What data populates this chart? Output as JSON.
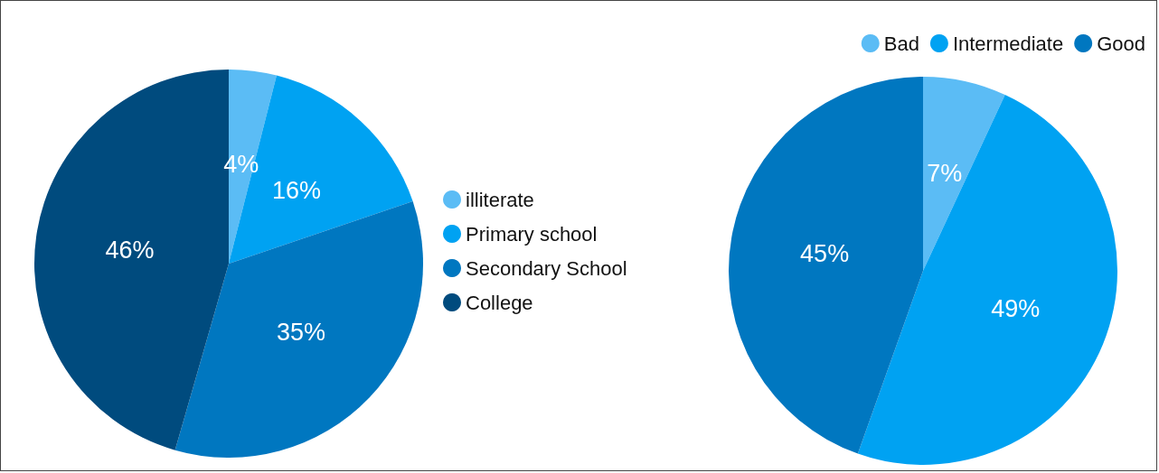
{
  "chart_data": [
    {
      "type": "pie",
      "categories": [
        "illiterate",
        "Primary school",
        "Secondary School",
        "College"
      ],
      "values": [
        4,
        16,
        35,
        46
      ],
      "colors": [
        "#5bbcf5",
        "#00a2f2",
        "#0077c0",
        "#004b7e"
      ],
      "value_labels": [
        "4%",
        "16%",
        "35%",
        "46%"
      ],
      "legend": "right"
    },
    {
      "type": "pie",
      "categories": [
        "Bad",
        "Intermediate",
        "Good"
      ],
      "values": [
        7,
        49,
        45
      ],
      "colors": [
        "#5bbcf5",
        "#00a2f2",
        "#0077c0"
      ],
      "value_labels": [
        "7%",
        "49%",
        "45%"
      ],
      "legend": "top right"
    }
  ]
}
